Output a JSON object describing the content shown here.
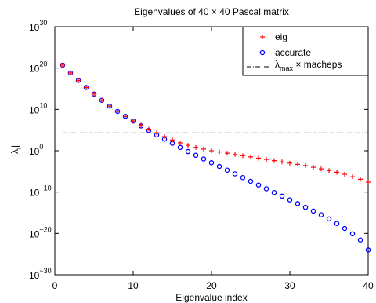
{
  "chart_data": {
    "type": "scatter",
    "title": "Eigenvalues of 40 × 40 Pascal matrix",
    "xlabel": "Eigenvalue index",
    "ylabel": "|λi|",
    "ylabel_main": "|λ",
    "ylabel_sub": "i",
    "xlim": [
      0,
      40
    ],
    "ylim": [
      1e-30,
      1e+30
    ],
    "yscale": "log",
    "x_ticks": [
      0,
      10,
      20,
      30,
      40
    ],
    "y_ticks": [
      {
        "base": "10",
        "exp": "−30",
        "value": 1e-30
      },
      {
        "base": "10",
        "exp": "−20",
        "value": 1e-20
      },
      {
        "base": "10",
        "exp": "−10",
        "value": 1e-10
      },
      {
        "base": "10",
        "exp": "0",
        "value": 1
      },
      {
        "base": "10",
        "exp": "10",
        "value": 10000000000.0
      },
      {
        "base": "10",
        "exp": "20",
        "value": 1e+20
      },
      {
        "base": "10",
        "exp": "30",
        "value": 1e+30
      }
    ],
    "x": [
      1,
      2,
      3,
      4,
      5,
      6,
      7,
      8,
      9,
      10,
      11,
      12,
      13,
      14,
      15,
      16,
      17,
      18,
      19,
      20,
      21,
      22,
      23,
      24,
      25,
      26,
      27,
      28,
      29,
      30,
      31,
      32,
      33,
      34,
      35,
      36,
      37,
      38,
      39,
      40
    ],
    "series": [
      {
        "name": "eig",
        "marker": "+",
        "color": "#ff0000",
        "log10_values": [
          20.7,
          18.8,
          17.0,
          15.3,
          13.7,
          12.2,
          10.8,
          9.5,
          8.3,
          7.2,
          6.2,
          5.2,
          4.3,
          3.4,
          2.6,
          1.9,
          1.3,
          0.8,
          0.4,
          0.0,
          -0.3,
          -0.6,
          -0.9,
          -1.2,
          -1.5,
          -1.8,
          -2.1,
          -2.4,
          -2.7,
          -3.0,
          -3.3,
          -3.6,
          -4.0,
          -4.4,
          -4.8,
          -5.2,
          -5.7,
          -6.3,
          -6.9,
          -7.6
        ]
      },
      {
        "name": "accurate",
        "marker": "o",
        "color": "#0000ff",
        "log10_values": [
          20.7,
          18.8,
          17.0,
          15.3,
          13.7,
          12.2,
          10.8,
          9.5,
          8.3,
          7.2,
          6.0,
          4.9,
          3.8,
          2.8,
          1.8,
          0.8,
          -0.2,
          -1.1,
          -2.0,
          -2.9,
          -3.8,
          -4.7,
          -5.6,
          -6.5,
          -7.4,
          -8.3,
          -9.2,
          -10.1,
          -11.0,
          -11.9,
          -12.8,
          -13.7,
          -14.6,
          -15.5,
          -16.5,
          -17.6,
          -18.8,
          -20.1,
          -21.6,
          -24.0
        ]
      },
      {
        "name": "λmax × macheps",
        "name_lambda": "λ",
        "name_sub": "max",
        "name_rest": " × macheps",
        "style": "dash-dot",
        "color": "#000000",
        "log10_value": 4.3
      }
    ],
    "legend": "top-right",
    "grid": false
  }
}
